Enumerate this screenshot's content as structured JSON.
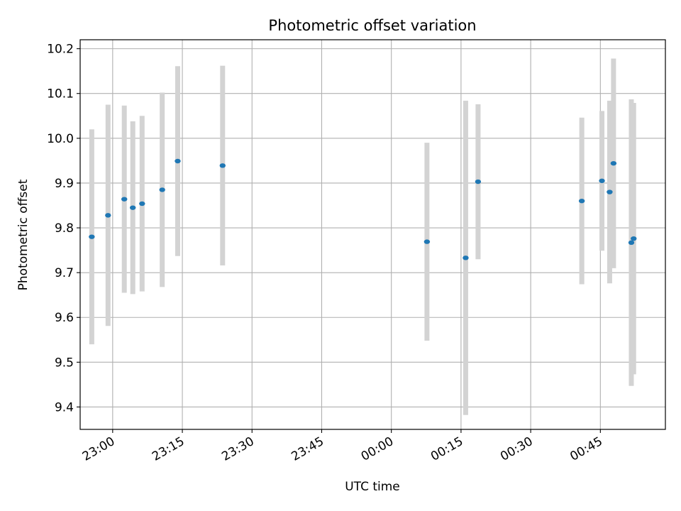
{
  "chart_data": {
    "type": "scatter",
    "title": "Photometric offset variation",
    "xlabel": "UTC time",
    "ylabel": "Photometric offset",
    "x_kind": "time",
    "xlim": [
      "22:53",
      "00:59"
    ],
    "ylim": [
      9.35,
      10.22
    ],
    "grid": true,
    "x_ticks": [
      "23:00",
      "23:15",
      "23:30",
      "23:45",
      "00:00",
      "00:15",
      "00:30",
      "00:45"
    ],
    "y_ticks": [
      9.4,
      9.5,
      9.6,
      9.7,
      9.8,
      9.9,
      10.0,
      10.1,
      10.2
    ],
    "colors": {
      "marker": "#1f77b4",
      "errorbar": "#d3d3d3",
      "grid": "#b0b0b0"
    },
    "points": [
      {
        "time": "22:55:30",
        "y": 9.78,
        "err": 0.24
      },
      {
        "time": "22:59:00",
        "y": 9.828,
        "err": 0.247
      },
      {
        "time": "23:02:30",
        "y": 9.864,
        "err": 0.209
      },
      {
        "time": "23:04:20",
        "y": 9.845,
        "err": 0.193
      },
      {
        "time": "23:06:20",
        "y": 9.854,
        "err": 0.196
      },
      {
        "time": "23:10:40",
        "y": 9.885,
        "err": 0.217
      },
      {
        "time": "23:14:00",
        "y": 9.949,
        "err": 0.212
      },
      {
        "time": "23:23:40",
        "y": 9.939,
        "err": 0.223
      },
      {
        "time": "00:07:40",
        "y": 9.769,
        "err": 0.221
      },
      {
        "time": "00:16:00",
        "y": 9.733,
        "err": 0.351
      },
      {
        "time": "00:18:40",
        "y": 9.903,
        "err": 0.173
      },
      {
        "time": "00:41:00",
        "y": 9.86,
        "err": 0.186
      },
      {
        "time": "00:45:20",
        "y": 9.905,
        "err": 0.156
      },
      {
        "time": "00:47:00",
        "y": 9.88,
        "err": 0.204
      },
      {
        "time": "00:47:50",
        "y": 9.944,
        "err": 0.234
      },
      {
        "time": "00:51:40",
        "y": 9.767,
        "err": 0.32
      },
      {
        "time": "00:52:10",
        "y": 9.776,
        "err": 0.303
      }
    ]
  }
}
